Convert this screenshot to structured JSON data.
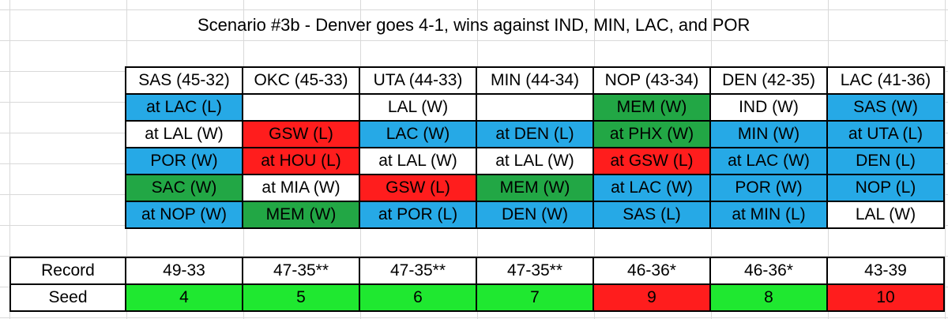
{
  "title": "Scenario #3b - Denver goes 4-1, wins against IND, MIN, LAC, and POR",
  "colors": {
    "blue": "#26a9e6",
    "red": "#ff1d1d",
    "green": "#22a745",
    "lime": "#1fe830",
    "white": "#ffffff"
  },
  "teams": [
    {
      "header": "SAS (45-32)",
      "games": [
        {
          "text": "at LAC (L)",
          "color": "blue"
        },
        {
          "text": "at LAL (W)",
          "color": "white"
        },
        {
          "text": "POR (W)",
          "color": "blue"
        },
        {
          "text": "SAC (W)",
          "color": "green"
        },
        {
          "text": "at NOP (W)",
          "color": "blue"
        }
      ],
      "record": "49-33",
      "seed": "4",
      "seed_color": "lime"
    },
    {
      "header": "OKC (45-33)",
      "games": [
        {
          "text": "",
          "color": "white"
        },
        {
          "text": "GSW (L)",
          "color": "red"
        },
        {
          "text": "at HOU (L)",
          "color": "red"
        },
        {
          "text": "at MIA (W)",
          "color": "white"
        },
        {
          "text": "MEM (W)",
          "color": "green"
        }
      ],
      "record": "47-35**",
      "seed": "5",
      "seed_color": "lime"
    },
    {
      "header": "UTA (44-33)",
      "games": [
        {
          "text": "LAL (W)",
          "color": "white"
        },
        {
          "text": "LAC (W)",
          "color": "blue"
        },
        {
          "text": "at LAL (W)",
          "color": "white"
        },
        {
          "text": "GSW (L)",
          "color": "red"
        },
        {
          "text": "at POR (L)",
          "color": "blue"
        }
      ],
      "record": "47-35**",
      "seed": "6",
      "seed_color": "lime"
    },
    {
      "header": "MIN (44-34)",
      "games": [
        {
          "text": "",
          "color": "white"
        },
        {
          "text": "at DEN (L)",
          "color": "blue"
        },
        {
          "text": "at LAL (W)",
          "color": "white"
        },
        {
          "text": "MEM (W)",
          "color": "green"
        },
        {
          "text": "DEN (W)",
          "color": "blue"
        }
      ],
      "record": "47-35**",
      "seed": "7",
      "seed_color": "lime"
    },
    {
      "header": "NOP (43-34)",
      "games": [
        {
          "text": "MEM (W)",
          "color": "green"
        },
        {
          "text": "at PHX (W)",
          "color": "green"
        },
        {
          "text": "at GSW (L)",
          "color": "red"
        },
        {
          "text": "at LAC (W)",
          "color": "blue"
        },
        {
          "text": "SAS (L)",
          "color": "blue"
        }
      ],
      "record": "46-36*",
      "seed": "9",
      "seed_color": "red"
    },
    {
      "header": "DEN (42-35)",
      "games": [
        {
          "text": "IND (W)",
          "color": "white"
        },
        {
          "text": "MIN (W)",
          "color": "blue"
        },
        {
          "text": "at LAC (W)",
          "color": "blue"
        },
        {
          "text": "POR (W)",
          "color": "blue"
        },
        {
          "text": "at MIN (L)",
          "color": "blue"
        }
      ],
      "record": "46-36*",
      "seed": "8",
      "seed_color": "lime"
    },
    {
      "header": "LAC (41-36)",
      "games": [
        {
          "text": "SAS (W)",
          "color": "blue"
        },
        {
          "text": "at UTA (L)",
          "color": "blue"
        },
        {
          "text": "DEN (L)",
          "color": "blue"
        },
        {
          "text": "NOP (L)",
          "color": "blue"
        },
        {
          "text": "LAL (W)",
          "color": "white"
        }
      ],
      "record": "43-39",
      "seed": "10",
      "seed_color": "red"
    }
  ],
  "summary": {
    "record_label": "Record",
    "seed_label": "Seed"
  }
}
